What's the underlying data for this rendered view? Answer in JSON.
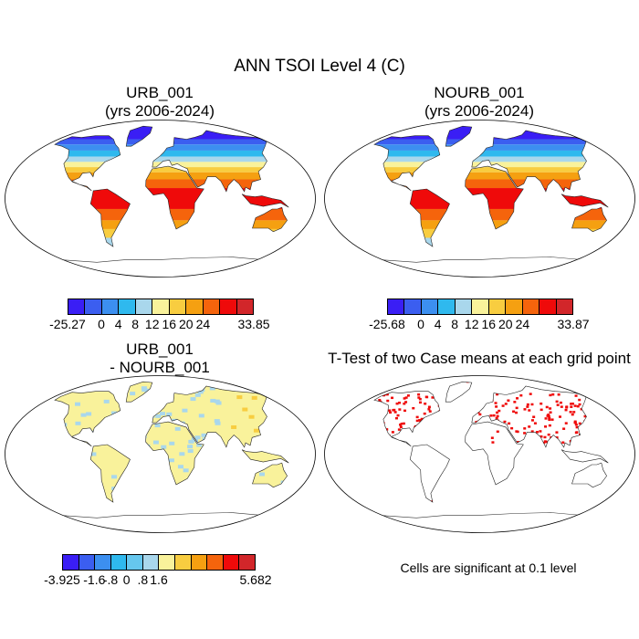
{
  "figure": {
    "title": "ANN TSOI Level 4 (C)"
  },
  "panels": [
    {
      "id": "p1",
      "title_lines": [
        "URB_001",
        "(yrs 2006-2024)"
      ],
      "kind": "field",
      "colorbar": {
        "colors": [
          "#3a1ef5",
          "#3b5ef0",
          "#3c8ff0",
          "#2fb9ee",
          "#a9d7ec",
          "#f9f29b",
          "#f8cd40",
          "#f5a011",
          "#f5640c",
          "#ef0a0a",
          "#d2262a"
        ],
        "labels": [
          "-25.27",
          "0",
          "4",
          "8",
          "12",
          "16",
          "20",
          "24",
          "33.85"
        ]
      }
    },
    {
      "id": "p2",
      "title_lines": [
        "NOURB_001",
        "(yrs 2006-2024)"
      ],
      "kind": "field",
      "colorbar": {
        "colors": [
          "#3a1ef5",
          "#3b5ef0",
          "#3c8ff0",
          "#2fb9ee",
          "#a9d7ec",
          "#f9f29b",
          "#f8cd40",
          "#f5a011",
          "#f5640c",
          "#ef0a0a",
          "#d2262a"
        ],
        "labels": [
          "-25.68",
          "0",
          "4",
          "8",
          "12",
          "16",
          "20",
          "24",
          "33.87"
        ]
      }
    },
    {
      "id": "p3",
      "title_lines": [
        "URB_001",
        "- NOURB_001"
      ],
      "kind": "difference",
      "colorbar": {
        "colors": [
          "#3a1ef5",
          "#3b5ef0",
          "#3c8ff0",
          "#2fb9ee",
          "#66c7ee",
          "#a9d7ec",
          "#f9f29b",
          "#f8cd40",
          "#f5a011",
          "#f5640c",
          "#ef0a0a",
          "#d2262a"
        ],
        "labels": [
          "-3.925",
          "-1.6",
          "-.8",
          "0",
          ".8",
          "1.6",
          "5.682"
        ]
      }
    },
    {
      "id": "p4",
      "title_lines": [
        "T-Test of two Case means at each grid point"
      ],
      "kind": "significance",
      "note": "Cells are significant at 0.1 level"
    }
  ]
}
